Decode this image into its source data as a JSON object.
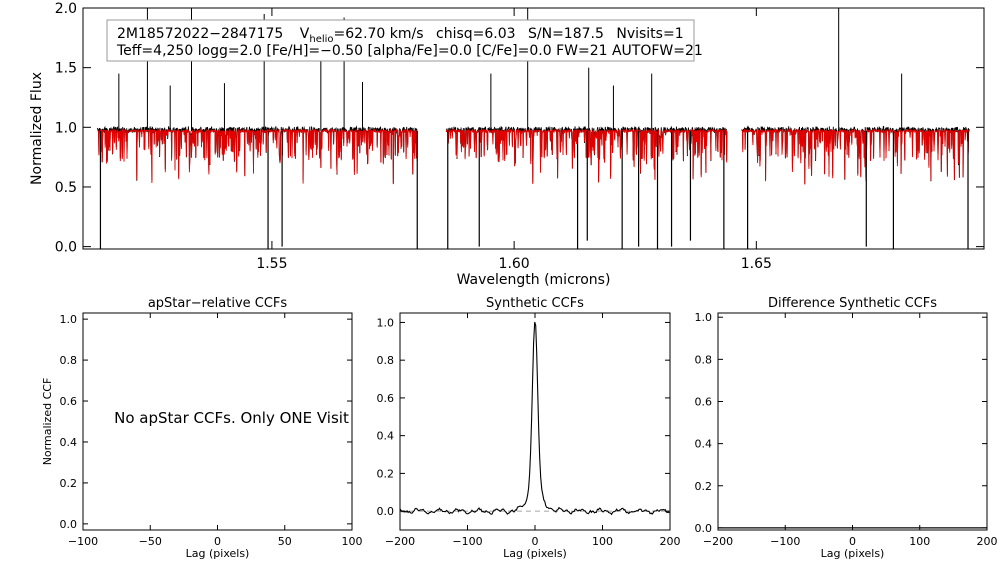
{
  "legend": {
    "object_id": "2M18572022−2847175",
    "vhelio_prefix": "V",
    "vhelio_sub": "helio",
    "vhelio_value": "=62.70 km/s",
    "chisq": "chisq=6.03",
    "snr": "S/N=187.5",
    "nvisits": "Nvisits=1",
    "line2": "Teff=4,250 logg=2.0 [Fe/H]=−0.50 [alpha/Fe]=0.0 [C/Fe]=0.0 FW=21 AUTOFW=21"
  },
  "chart_data": [
    {
      "type": "line",
      "xlabel": "Wavelength (microns)",
      "ylabel": "Normalized Flux",
      "xlim": [
        1.511,
        1.697
      ],
      "ylim": [
        -0.02,
        2.0
      ],
      "xticks": [
        {
          "v": 1.55,
          "label": "1.55"
        },
        {
          "v": 1.6,
          "label": "1.60"
        },
        {
          "v": 1.65,
          "label": "1.65"
        }
      ],
      "yticks": [
        {
          "v": 0.0,
          "label": "0.0"
        },
        {
          "v": 0.5,
          "label": "0.5"
        },
        {
          "v": 1.0,
          "label": "1.0"
        },
        {
          "v": 1.5,
          "label": "1.5"
        },
        {
          "v": 2.0,
          "label": "2.0"
        }
      ],
      "segments": [
        [
          1.514,
          1.58
        ],
        [
          1.586,
          1.644
        ],
        [
          1.647,
          1.694
        ]
      ],
      "continuum": 0.97,
      "observed_color": "#000000",
      "model_color": "#e00000",
      "spikes": [
        {
          "x": 1.5184,
          "y": 1.45
        },
        {
          "x": 1.5243,
          "y": 2.0
        },
        {
          "x": 1.529,
          "y": 1.35
        },
        {
          "x": 1.5334,
          "y": 2.0
        },
        {
          "x": 1.5402,
          "y": 1.37
        },
        {
          "x": 1.5484,
          "y": 1.95
        },
        {
          "x": 1.5601,
          "y": 1.6
        },
        {
          "x": 1.5649,
          "y": 1.92
        },
        {
          "x": 1.5687,
          "y": 1.38
        },
        {
          "x": 1.5952,
          "y": 1.45
        },
        {
          "x": 1.6028,
          "y": 2.0
        },
        {
          "x": 1.6154,
          "y": 1.5
        },
        {
          "x": 1.6205,
          "y": 1.35
        },
        {
          "x": 1.6284,
          "y": 1.45
        },
        {
          "x": 1.667,
          "y": 2.0
        },
        {
          "x": 1.68,
          "y": 1.45
        }
      ],
      "dips": [
        {
          "x": 1.5146,
          "y": -0.02
        },
        {
          "x": 1.5492,
          "y": -0.02
        },
        {
          "x": 1.5521,
          "y": 0.0
        },
        {
          "x": 1.58,
          "y": -0.02
        },
        {
          "x": 1.5863,
          "y": -0.02
        },
        {
          "x": 1.5928,
          "y": 0.0
        },
        {
          "x": 1.6131,
          "y": -0.02
        },
        {
          "x": 1.6151,
          "y": 0.05
        },
        {
          "x": 1.6223,
          "y": -0.02
        },
        {
          "x": 1.6257,
          "y": 0.0
        },
        {
          "x": 1.6296,
          "y": -0.02
        },
        {
          "x": 1.6325,
          "y": 0.0
        },
        {
          "x": 1.6364,
          "y": 0.05
        },
        {
          "x": 1.6433,
          "y": -0.02
        },
        {
          "x": 1.6482,
          "y": -0.02
        },
        {
          "x": 1.6727,
          "y": 0.0
        },
        {
          "x": 1.6783,
          "y": -0.02
        },
        {
          "x": 1.6937,
          "y": -0.02
        }
      ]
    },
    {
      "type": "line",
      "title": "apStar−relative CCFs",
      "xlabel": "Lag (pixels)",
      "ylabel": "Normalized CCF",
      "xlim": [
        -100,
        100
      ],
      "ylim": [
        -0.03,
        1.03
      ],
      "xticks": [
        {
          "v": -100,
          "label": "−100"
        },
        {
          "v": -50,
          "label": "−50"
        },
        {
          "v": 0,
          "label": "0"
        },
        {
          "v": 50,
          "label": "50"
        },
        {
          "v": 100,
          "label": "100"
        }
      ],
      "yticks": [
        {
          "v": 0.0,
          "label": "0.0"
        },
        {
          "v": 0.2,
          "label": "0.2"
        },
        {
          "v": 0.4,
          "label": "0.4"
        },
        {
          "v": 0.6,
          "label": "0.6"
        },
        {
          "v": 0.8,
          "label": "0.8"
        },
        {
          "v": 1.0,
          "label": "1.0"
        }
      ],
      "annotation": "No apStar CCFs.  Only ONE Visit"
    },
    {
      "type": "line",
      "title": "Synthetic CCFs",
      "xlabel": "Lag (pixels)",
      "xlim": [
        -200,
        200
      ],
      "ylim": [
        -0.1,
        1.05
      ],
      "xticks": [
        {
          "v": -200,
          "label": "−200"
        },
        {
          "v": -100,
          "label": "−100"
        },
        {
          "v": 0,
          "label": "0"
        },
        {
          "v": 100,
          "label": "100"
        },
        {
          "v": 200,
          "label": "200"
        }
      ],
      "yticks": [
        {
          "v": 0.0,
          "label": "0.0"
        },
        {
          "v": 0.2,
          "label": "0.2"
        },
        {
          "v": 0.4,
          "label": "0.4"
        },
        {
          "v": 0.6,
          "label": "0.6"
        },
        {
          "v": 0.8,
          "label": "0.8"
        },
        {
          "v": 1.0,
          "label": "1.0"
        }
      ],
      "peak": {
        "x": 0,
        "y": 1.0
      },
      "baseline": 0.0,
      "noise_level": -0.01
    },
    {
      "type": "line",
      "title": "Difference Synthetic CCFs",
      "xlabel": "Lag (pixels)",
      "xlim": [
        -200,
        200
      ],
      "ylim": [
        -0.01,
        1.02
      ],
      "xticks": [
        {
          "v": -200,
          "label": "−200"
        },
        {
          "v": -100,
          "label": "−100"
        },
        {
          "v": 0,
          "label": "0"
        },
        {
          "v": 100,
          "label": "100"
        },
        {
          "v": 200,
          "label": "200"
        }
      ],
      "yticks": [
        {
          "v": 0.0,
          "label": "0.0"
        },
        {
          "v": 0.2,
          "label": "0.2"
        },
        {
          "v": 0.4,
          "label": "0.4"
        },
        {
          "v": 0.6,
          "label": "0.6"
        },
        {
          "v": 0.8,
          "label": "0.8"
        },
        {
          "v": 1.0,
          "label": "1.0"
        }
      ],
      "baseline": 0.0
    }
  ]
}
